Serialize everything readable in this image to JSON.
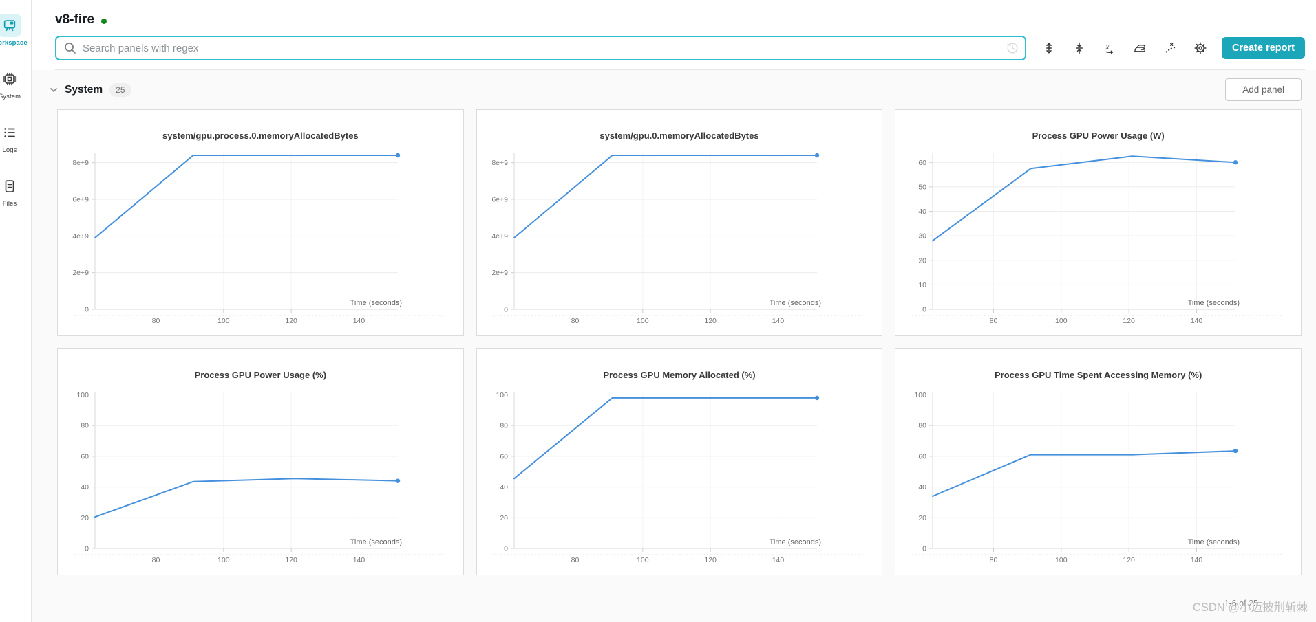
{
  "page": {
    "run_title": "v8-fire",
    "run_state": "running"
  },
  "colors": {
    "accent_teal": "#1ca6ba",
    "search_border_teal": "#2ebdd1",
    "sidebar_active_teal": "#0e9cb0",
    "chart_line_blue": "#4490dd",
    "run_dot_green": "#15871b"
  },
  "sidebar": {
    "items": [
      {
        "label": "Workspace",
        "active": true
      },
      {
        "label": "System",
        "active": false
      },
      {
        "label": "Logs",
        "active": false
      },
      {
        "label": "Files",
        "active": false
      }
    ]
  },
  "search": {
    "placeholder": "Search panels with regex",
    "value": ""
  },
  "toolbar": {
    "icons": [
      "history",
      "expand-panels",
      "collapse-panels",
      "x-axis",
      "smoothing",
      "outliers",
      "settings"
    ],
    "create_report_label": "Create report"
  },
  "section": {
    "title": "System",
    "count": "25",
    "add_panel_label": "Add panel",
    "pagination": "1-6 of 25"
  },
  "watermark": "CSDN @小迈披荆斩棘",
  "chart_data": [
    {
      "type": "line",
      "title": "system/gpu.process.0.memoryAllocatedBytes",
      "xlabel": "Time (seconds)",
      "x": [
        62,
        91,
        151.5
      ],
      "y": [
        3900000000.0,
        8400000000.0,
        8400000000.0
      ],
      "xlim": [
        62,
        151.5
      ],
      "ylim": [
        0,
        8550000000.0
      ],
      "xticks": [
        80,
        100,
        120,
        140
      ],
      "yticks": [
        {
          "v": 0,
          "label": "0"
        },
        {
          "v": 2000000000.0,
          "label": "2e+9"
        },
        {
          "v": 4000000000.0,
          "label": "4e+9"
        },
        {
          "v": 6000000000.0,
          "label": "6e+9"
        },
        {
          "v": 8000000000.0,
          "label": "8e+9"
        }
      ],
      "grid": true,
      "legend": "none",
      "endpoint_dot": true
    },
    {
      "type": "line",
      "title": "system/gpu.0.memoryAllocatedBytes",
      "xlabel": "Time (seconds)",
      "x": [
        62,
        91,
        151.5
      ],
      "y": [
        3900000000.0,
        8400000000.0,
        8400000000.0
      ],
      "xlim": [
        62,
        151.5
      ],
      "ylim": [
        0,
        8550000000.0
      ],
      "xticks": [
        80,
        100,
        120,
        140
      ],
      "yticks": [
        {
          "v": 0,
          "label": "0"
        },
        {
          "v": 2000000000.0,
          "label": "2e+9"
        },
        {
          "v": 4000000000.0,
          "label": "4e+9"
        },
        {
          "v": 6000000000.0,
          "label": "6e+9"
        },
        {
          "v": 8000000000.0,
          "label": "8e+9"
        }
      ],
      "grid": true,
      "legend": "none",
      "endpoint_dot": true
    },
    {
      "type": "line",
      "title": "Process GPU Power Usage (W)",
      "xlabel": "Time (seconds)",
      "x": [
        62,
        91,
        121,
        151.5
      ],
      "y": [
        28,
        57.5,
        62.5,
        60
      ],
      "xlim": [
        62,
        151.5
      ],
      "ylim": [
        0,
        64
      ],
      "xticks": [
        80,
        100,
        120,
        140
      ],
      "yticks": [
        {
          "v": 0,
          "label": "0"
        },
        {
          "v": 10,
          "label": "10"
        },
        {
          "v": 20,
          "label": "20"
        },
        {
          "v": 30,
          "label": "30"
        },
        {
          "v": 40,
          "label": "40"
        },
        {
          "v": 50,
          "label": "50"
        },
        {
          "v": 60,
          "label": "60"
        }
      ],
      "grid": true,
      "legend": "none",
      "endpoint_dot": true
    },
    {
      "type": "line",
      "title": "Process GPU Power Usage (%)",
      "xlabel": "Time (seconds)",
      "x": [
        62,
        91,
        121,
        151.5
      ],
      "y": [
        20.5,
        43.5,
        45.5,
        44
      ],
      "xlim": [
        62,
        151.5
      ],
      "ylim": [
        0,
        102
      ],
      "xticks": [
        80,
        100,
        120,
        140
      ],
      "yticks": [
        {
          "v": 0,
          "label": "0"
        },
        {
          "v": 20,
          "label": "20"
        },
        {
          "v": 40,
          "label": "40"
        },
        {
          "v": 60,
          "label": "60"
        },
        {
          "v": 80,
          "label": "80"
        },
        {
          "v": 100,
          "label": "100"
        }
      ],
      "grid": true,
      "legend": "none",
      "endpoint_dot": true
    },
    {
      "type": "line",
      "title": "Process GPU Memory Allocated (%)",
      "xlabel": "Time (seconds)",
      "x": [
        62,
        91,
        151.5
      ],
      "y": [
        45.5,
        98,
        98
      ],
      "xlim": [
        62,
        151.5
      ],
      "ylim": [
        0,
        102
      ],
      "xticks": [
        80,
        100,
        120,
        140
      ],
      "yticks": [
        {
          "v": 0,
          "label": "0"
        },
        {
          "v": 20,
          "label": "20"
        },
        {
          "v": 40,
          "label": "40"
        },
        {
          "v": 60,
          "label": "60"
        },
        {
          "v": 80,
          "label": "80"
        },
        {
          "v": 100,
          "label": "100"
        }
      ],
      "grid": true,
      "legend": "none",
      "endpoint_dot": true
    },
    {
      "type": "line",
      "title": "Process GPU Time Spent Accessing Memory (%)",
      "xlabel": "Time (seconds)",
      "x": [
        62,
        91,
        121,
        151.5
      ],
      "y": [
        34,
        61,
        61,
        63.5
      ],
      "xlim": [
        62,
        151.5
      ],
      "ylim": [
        0,
        102
      ],
      "xticks": [
        80,
        100,
        120,
        140
      ],
      "yticks": [
        {
          "v": 0,
          "label": "0"
        },
        {
          "v": 20,
          "label": "20"
        },
        {
          "v": 40,
          "label": "40"
        },
        {
          "v": 60,
          "label": "60"
        },
        {
          "v": 80,
          "label": "80"
        },
        {
          "v": 100,
          "label": "100"
        }
      ],
      "grid": true,
      "legend": "none",
      "endpoint_dot": true
    }
  ]
}
